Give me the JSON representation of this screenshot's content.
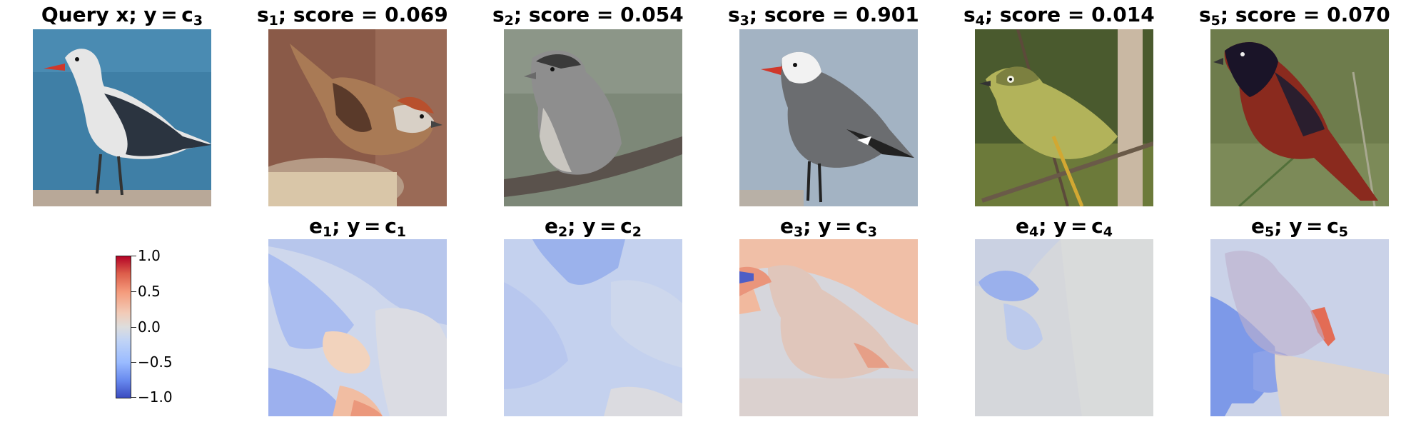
{
  "top_row": [
    {
      "base": "Query x; y = c",
      "sub": "3",
      "tail": ""
    },
    {
      "base": "s",
      "sub": "1",
      "tail": "; score = 0.069"
    },
    {
      "base": "s",
      "sub": "2",
      "tail": "; score = 0.054"
    },
    {
      "base": "s",
      "sub": "3",
      "tail": "; score = 0.901"
    },
    {
      "base": "s",
      "sub": "4",
      "tail": "; score = 0.014"
    },
    {
      "base": "s",
      "sub": "5",
      "tail": "; score = 0.070"
    }
  ],
  "bottom_row": [
    {
      "base": "e",
      "sub": "1",
      "mid": "; y = c",
      "sub2": "1"
    },
    {
      "base": "e",
      "sub": "2",
      "mid": "; y = c",
      "sub2": "2"
    },
    {
      "base": "e",
      "sub": "3",
      "mid": "; y = c",
      "sub2": "3"
    },
    {
      "base": "e",
      "sub": "4",
      "mid": "; y = c",
      "sub2": "4"
    },
    {
      "base": "e",
      "sub": "5",
      "mid": "; y = c",
      "sub2": "5"
    }
  ],
  "colorbar": {
    "ticks": [
      "1.0",
      "0.5",
      "0.0",
      "−0.5",
      "−1.0"
    ],
    "colormap": "coolwarm",
    "range": [
      -1.0,
      1.0
    ]
  },
  "images": {
    "query": "heermann-gull",
    "s1": "chipping-sparrow",
    "s2": "white-crowned-sparrow",
    "s3": "heermann-gull",
    "s4": "white-eyed-vireo",
    "s5": "orchard-oriole"
  },
  "colors": {
    "positive": "#b40426",
    "neutral": "#dddddd",
    "negative": "#3b4cc0"
  }
}
